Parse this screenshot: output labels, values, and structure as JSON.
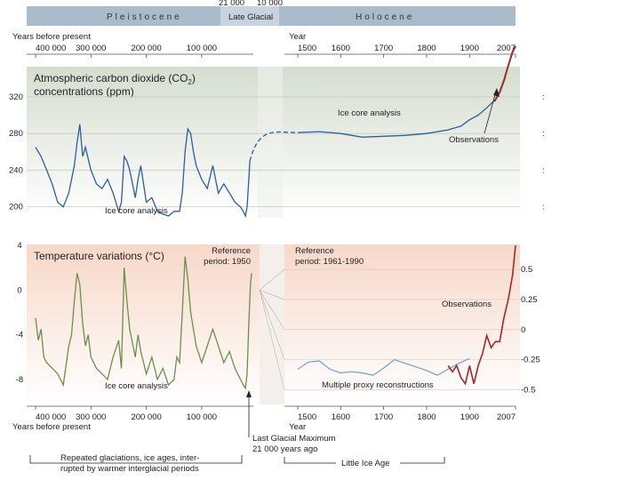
{
  "colors": {
    "co2_panel_bg": "#e3e8df",
    "temp_panel_bg": "#fbe6dc",
    "pleistocene_line": "#2f5d9e",
    "holocene_co2_line": "#2f5d9e",
    "temp_ice_core_line": "#6b8f4e",
    "proxy_line": "#6aa3cf",
    "observations_line": "#9e2a2a",
    "era_bar": "#a9bccc"
  },
  "eras": {
    "pleistocene": "Pleistocene",
    "late_glacial": "Late Glacial",
    "holocene": "Holocene",
    "marker_a": "21 000",
    "marker_b": "10 000"
  },
  "axes": {
    "left_top_caption": "Years before present",
    "left_bottom_caption": "Years before present",
    "right_top_caption": "Year",
    "right_bottom_caption": "Year",
    "left_ticks": [
      "400 000",
      "300 000",
      "200 000",
      "100 000"
    ],
    "right_ticks": [
      "1500",
      "1600",
      "1700",
      "1800",
      "1900",
      "2007"
    ]
  },
  "chart_data": [
    {
      "type": "line",
      "title": "Atmospheric carbon dioxide (CO2) concentrations (ppm)",
      "title_line1": "Atmospheric carbon dioxide (CO",
      "title_sub": "2",
      "title_close": ")",
      "title_line2": "concentrations (ppm)",
      "ylim": [
        190,
        350
      ],
      "yticks": [
        200,
        240,
        280,
        320
      ],
      "series": [
        {
          "name": "Ice core analysis",
          "x_unit": "years before present",
          "x": [
            400000,
            390000,
            380000,
            370000,
            360000,
            350000,
            340000,
            330000,
            325000,
            320000,
            315000,
            310000,
            300000,
            290000,
            280000,
            270000,
            260000,
            250000,
            245000,
            240000,
            235000,
            230000,
            220000,
            215000,
            210000,
            200000,
            190000,
            180000,
            170000,
            160000,
            150000,
            140000,
            135000,
            130000,
            125000,
            120000,
            115000,
            110000,
            100000,
            90000,
            80000,
            70000,
            60000,
            50000,
            40000,
            30000,
            25000,
            21000,
            18000,
            15000,
            13000
          ],
          "y": [
            265,
            255,
            240,
            225,
            205,
            200,
            215,
            245,
            270,
            290,
            255,
            265,
            240,
            225,
            220,
            230,
            215,
            195,
            205,
            255,
            250,
            240,
            210,
            230,
            245,
            205,
            210,
            195,
            192,
            190,
            195,
            195,
            215,
            260,
            285,
            280,
            260,
            245,
            230,
            220,
            245,
            215,
            225,
            215,
            205,
            200,
            195,
            190,
            200,
            230,
            250
          ]
        },
        {
          "name": "Ice core analysis (Holocene)",
          "x_unit": "year",
          "x": [
            1500,
            1550,
            1600,
            1650,
            1700,
            1750,
            1800,
            1850,
            1880,
            1900,
            1920,
            1940,
            1960
          ],
          "y": [
            281,
            282,
            280,
            276,
            277,
            278,
            280,
            284,
            288,
            295,
            300,
            308,
            317
          ]
        },
        {
          "name": "Observations",
          "x_unit": "year",
          "x": [
            1958,
            1970,
            1980,
            1990,
            2000,
            2007
          ],
          "y": [
            315,
            325,
            338,
            354,
            369,
            383
          ]
        }
      ],
      "annotations": {
        "ice_core_left": "Ice core analysis",
        "ice_core_right": "Ice core analysis",
        "observations": "Observations"
      }
    },
    {
      "type": "line",
      "title": "Temperature variations (°C)",
      "left_ylim": [
        -10,
        4
      ],
      "left_yticks": [
        4,
        0,
        -4,
        -8
      ],
      "right_ylim": [
        -0.6,
        0.7
      ],
      "right_yticks": [
        0.5,
        0.25,
        0,
        -0.25,
        -0.5
      ],
      "series": [
        {
          "name": "Ice core analysis",
          "x_unit": "years before present",
          "x": [
            400000,
            395000,
            390000,
            385000,
            380000,
            370000,
            360000,
            350000,
            340000,
            335000,
            330000,
            325000,
            320000,
            315000,
            310000,
            305000,
            300000,
            290000,
            280000,
            270000,
            260000,
            250000,
            245000,
            240000,
            235000,
            230000,
            220000,
            215000,
            210000,
            200000,
            190000,
            180000,
            170000,
            160000,
            150000,
            145000,
            140000,
            135000,
            130000,
            125000,
            120000,
            110000,
            100000,
            90000,
            80000,
            70000,
            60000,
            50000,
            40000,
            30000,
            25000,
            21000,
            18000,
            15000,
            12000,
            10000
          ],
          "y": [
            -2.5,
            -4.5,
            -3.5,
            -6,
            -6.5,
            -7,
            -7.5,
            -8.5,
            -5,
            -4,
            -1,
            1.5,
            0.5,
            -3,
            -5,
            -4,
            -6,
            -7,
            -7.5,
            -8,
            -6,
            -4.5,
            -7,
            2,
            -1,
            -3.5,
            -6,
            -4,
            -5.5,
            -7.5,
            -6,
            -8,
            -7,
            -8.5,
            -8,
            -6,
            -6.5,
            -2,
            3,
            1,
            -2,
            -5,
            -6.5,
            -5,
            -3.5,
            -5,
            -6.5,
            -5.5,
            -7,
            -8,
            -8.5,
            -8.8,
            -7.5,
            -3,
            0.5,
            1.5
          ]
        },
        {
          "name": "Multiple proxy reconstructions",
          "x_unit": "year",
          "x": [
            1500,
            1525,
            1550,
            1575,
            1600,
            1625,
            1650,
            1675,
            1700,
            1725,
            1750,
            1775,
            1800,
            1825,
            1850,
            1875,
            1900
          ],
          "y": [
            -0.33,
            -0.27,
            -0.26,
            -0.33,
            -0.36,
            -0.35,
            -0.36,
            -0.38,
            -0.32,
            -0.25,
            -0.28,
            -0.31,
            -0.34,
            -0.38,
            -0.33,
            -0.28,
            -0.24
          ]
        },
        {
          "name": "Observations",
          "x_unit": "year",
          "x": [
            1850,
            1860,
            1870,
            1880,
            1890,
            1900,
            1910,
            1920,
            1930,
            1940,
            1950,
            1960,
            1970,
            1980,
            1990,
            2000,
            2007
          ],
          "y": [
            -0.3,
            -0.35,
            -0.3,
            -0.4,
            -0.45,
            -0.3,
            -0.45,
            -0.3,
            -0.2,
            -0.05,
            -0.15,
            -0.1,
            -0.1,
            0.1,
            0.25,
            0.45,
            0.7
          ]
        }
      ],
      "annotations": {
        "ref_left": [
          "Reference",
          "period: 1950"
        ],
        "ref_right": [
          "Reference",
          "period: 1961-1990"
        ],
        "ice_core": "Ice core analysis",
        "proxy": "Multiple proxy reconstructions",
        "observations": "Observations"
      }
    }
  ],
  "footer": {
    "lgm_line1": "Last Glacial Maximum",
    "lgm_line2": "21 000 years ago",
    "glaciation_line1": "Repeated glaciations, ice ages, inter-",
    "glaciation_line2": "rupted by warmer interglacial periods",
    "little_ice_age": "Little Ice Age"
  }
}
